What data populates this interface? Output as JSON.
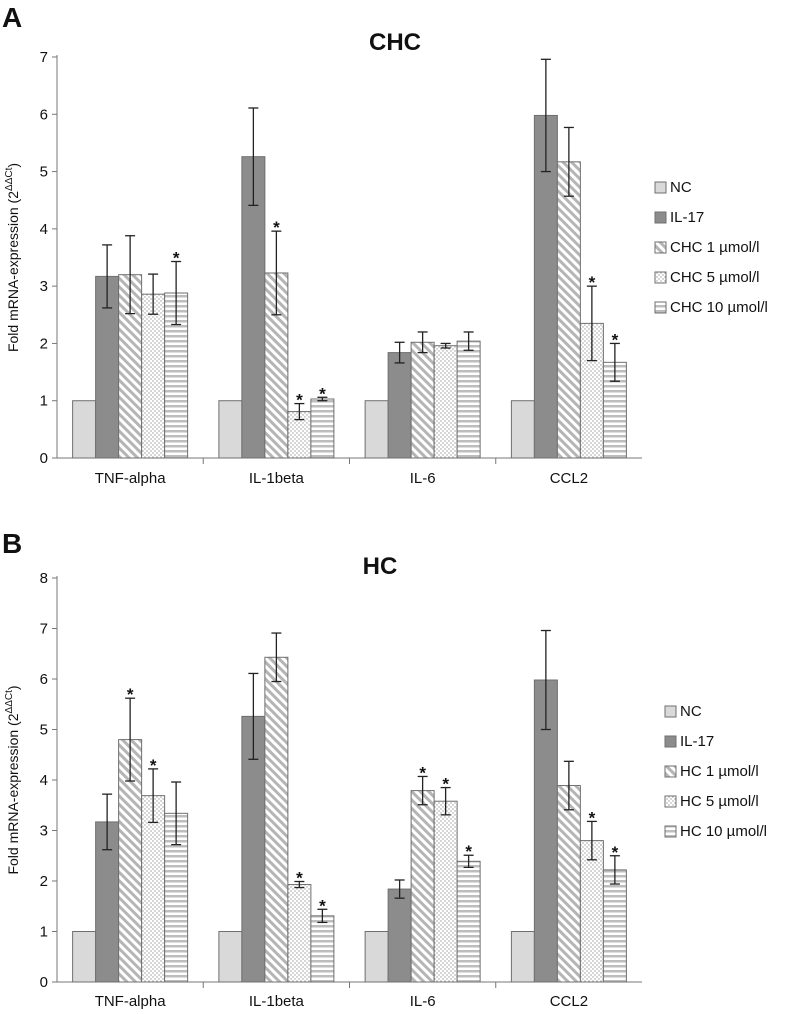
{
  "colors": {
    "NC": "#d9d9d9",
    "IL17": "#8c8c8c",
    "diag": "#b5b5b5",
    "dots": "#9a9a9a",
    "horiz": "#bdbdbd",
    "stroke": "#6f6f6f"
  },
  "chart_data": [
    {
      "panel_label": "A",
      "type": "bar",
      "title": "CHC",
      "ylabel": {
        "main": "Fold mRNA-expression (2",
        "superscript": "ΔΔCt",
        "close": ")"
      },
      "ylim": [
        0,
        7
      ],
      "yticks": [
        "0",
        "1",
        "2",
        "3",
        "4",
        "5",
        "6",
        "7"
      ],
      "categories": [
        "TNF-alpha",
        "IL-1beta",
        "IL-6",
        "CCL2"
      ],
      "legend": [
        "NC",
        "IL-17",
        "CHC 1 µmol/l",
        "CHC 5 µmol/l",
        "CHC 10 µmol/l"
      ],
      "series": [
        {
          "name": "NC",
          "pattern": "solid-light",
          "values": [
            1,
            1,
            1,
            1
          ],
          "errors": [
            0,
            0,
            0,
            0
          ],
          "stars": [
            false,
            false,
            false,
            false
          ]
        },
        {
          "name": "IL-17",
          "pattern": "solid-dark",
          "values": [
            3.17,
            5.26,
            1.84,
            5.98
          ],
          "errors": [
            0.55,
            0.85,
            0.18,
            0.98
          ],
          "stars": [
            false,
            false,
            false,
            false
          ]
        },
        {
          "name": "CHC 1 µmol/l",
          "pattern": "diagonal",
          "values": [
            3.2,
            3.23,
            2.02,
            5.17
          ],
          "errors": [
            0.68,
            0.73,
            0.18,
            0.6
          ],
          "stars": [
            false,
            true,
            false,
            false
          ]
        },
        {
          "name": "CHC 5 µmol/l",
          "pattern": "dots",
          "values": [
            2.86,
            0.81,
            1.96,
            2.35
          ],
          "errors": [
            0.35,
            0.14,
            0.04,
            0.65
          ],
          "stars": [
            false,
            true,
            false,
            true
          ]
        },
        {
          "name": "CHC 10 µmol/l",
          "pattern": "horizontal",
          "values": [
            2.88,
            1.03,
            2.04,
            1.67
          ],
          "errors": [
            0.55,
            0.03,
            0.16,
            0.33
          ],
          "stars": [
            true,
            true,
            false,
            true
          ]
        }
      ],
      "star_symbol": "*"
    },
    {
      "panel_label": "B",
      "type": "bar",
      "title": "HC",
      "ylabel": {
        "main": "Fold mRNA-expression (2",
        "superscript": "ΔΔCt",
        "close": ")"
      },
      "ylim": [
        0,
        8
      ],
      "yticks": [
        "0",
        "1",
        "2",
        "3",
        "4",
        "5",
        "6",
        "7",
        "8"
      ],
      "categories": [
        "TNF-alpha",
        "IL-1beta",
        "IL-6",
        "CCL2"
      ],
      "legend": [
        "NC",
        "IL-17",
        "HC 1 µmol/l",
        "HC 5 µmol/l",
        "HC 10 µmol/l"
      ],
      "series": [
        {
          "name": "NC",
          "pattern": "solid-light",
          "values": [
            1,
            1,
            1,
            1
          ],
          "errors": [
            0,
            0,
            0,
            0
          ],
          "stars": [
            false,
            false,
            false,
            false
          ]
        },
        {
          "name": "IL-17",
          "pattern": "solid-dark",
          "values": [
            3.17,
            5.26,
            1.84,
            5.98
          ],
          "errors": [
            0.55,
            0.85,
            0.18,
            0.98
          ],
          "stars": [
            false,
            false,
            false,
            false
          ]
        },
        {
          "name": "HC 1 µmol/l",
          "pattern": "diagonal",
          "values": [
            4.8,
            6.43,
            3.79,
            3.89
          ],
          "errors": [
            0.82,
            0.48,
            0.28,
            0.48
          ],
          "stars": [
            true,
            false,
            true,
            false
          ]
        },
        {
          "name": "HC 5 µmol/l",
          "pattern": "dots",
          "values": [
            3.69,
            1.93,
            3.58,
            2.8
          ],
          "errors": [
            0.53,
            0.06,
            0.27,
            0.38
          ],
          "stars": [
            true,
            true,
            true,
            true
          ]
        },
        {
          "name": "HC 10 µmol/l",
          "pattern": "horizontal",
          "values": [
            3.34,
            1.31,
            2.39,
            2.22
          ],
          "errors": [
            0.62,
            0.13,
            0.12,
            0.28
          ],
          "stars": [
            false,
            true,
            true,
            true
          ]
        }
      ],
      "star_symbol": "*"
    }
  ]
}
